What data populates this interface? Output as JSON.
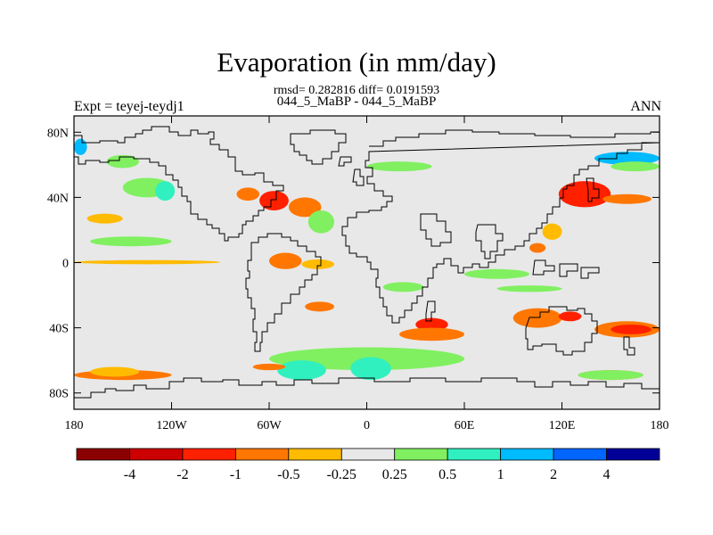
{
  "title": "Evaporation (in mm/day)",
  "stats_line": "rmsd= 0.282816 diff= 0.0191593",
  "subtitle": "044_5_MaBP - 044_5_MaBP",
  "left_label": "Expt = teyej-teydj1",
  "right_label": "ANN",
  "chart_data": {
    "type": "heatmap",
    "map_projection": "cylindrical-equidistant",
    "xlim": [
      -180,
      180
    ],
    "ylim": [
      -90,
      90
    ],
    "x_ticks": [
      {
        "value": -180,
        "label": "180"
      },
      {
        "value": -120,
        "label": "120W"
      },
      {
        "value": -60,
        "label": "60W"
      },
      {
        "value": 0,
        "label": "0"
      },
      {
        "value": 60,
        "label": "60E"
      },
      {
        "value": 120,
        "label": "120E"
      },
      {
        "value": 180,
        "label": "180"
      }
    ],
    "y_ticks": [
      {
        "value": 80,
        "label": "80N"
      },
      {
        "value": 40,
        "label": "40N"
      },
      {
        "value": 0,
        "label": "0"
      },
      {
        "value": -40,
        "label": "40S"
      },
      {
        "value": -80,
        "label": "80S"
      }
    ],
    "colorbar": {
      "levels": [
        "-4",
        "-2",
        "-1",
        "-0.5",
        "-0.25",
        "0.25",
        "0.5",
        "1",
        "2",
        "4"
      ],
      "colors": [
        "#8b0000",
        "#cc0000",
        "#ff2000",
        "#ff7700",
        "#ffbb00",
        "#e8e8e8",
        "#80f060",
        "#30f0c0",
        "#00bbff",
        "#0066ff",
        "#000099"
      ]
    },
    "background_color": "#e8e8e8",
    "anomaly_regions": [
      {
        "lon": [
          -180,
          -172
        ],
        "lat": [
          66,
          76
        ],
        "level": 8
      },
      {
        "lon": [
          -160,
          -140
        ],
        "lat": [
          58,
          66
        ],
        "level": 6
      },
      {
        "lon": [
          -150,
          -120
        ],
        "lat": [
          40,
          52
        ],
        "level": 6
      },
      {
        "lon": [
          -130,
          -118
        ],
        "lat": [
          38,
          50
        ],
        "level": 7
      },
      {
        "lon": [
          -172,
          -150
        ],
        "lat": [
          24,
          30
        ],
        "level": 4
      },
      {
        "lon": [
          -80,
          -66
        ],
        "lat": [
          38,
          46
        ],
        "level": 3
      },
      {
        "lon": [
          -66,
          -48
        ],
        "lat": [
          32,
          44
        ],
        "level": 2
      },
      {
        "lon": [
          -48,
          -28
        ],
        "lat": [
          28,
          40
        ],
        "level": 3
      },
      {
        "lon": [
          -36,
          -20
        ],
        "lat": [
          18,
          32
        ],
        "level": 6
      },
      {
        "lon": [
          -180,
          -90
        ],
        "lat": [
          -1,
          1.5
        ],
        "level": 4
      },
      {
        "lon": [
          -170,
          -120
        ],
        "lat": [
          10,
          16
        ],
        "level": 6
      },
      {
        "lon": [
          -60,
          -40
        ],
        "lat": [
          -4,
          6
        ],
        "level": 3
      },
      {
        "lon": [
          -40,
          -20
        ],
        "lat": [
          -4,
          2
        ],
        "level": 4
      },
      {
        "lon": [
          -38,
          -20
        ],
        "lat": [
          -30,
          -24
        ],
        "level": 3
      },
      {
        "lon": [
          10,
          35
        ],
        "lat": [
          -18,
          -12
        ],
        "level": 6
      },
      {
        "lon": [
          30,
          50
        ],
        "lat": [
          -42,
          -34
        ],
        "level": 2
      },
      {
        "lon": [
          20,
          60
        ],
        "lat": [
          -48,
          -40
        ],
        "level": 3
      },
      {
        "lon": [
          -60,
          60
        ],
        "lat": [
          -66,
          -52
        ],
        "level": 6
      },
      {
        "lon": [
          -55,
          -25
        ],
        "lat": [
          -72,
          -60
        ],
        "level": 7
      },
      {
        "lon": [
          -10,
          15
        ],
        "lat": [
          -72,
          -58
        ],
        "level": 7
      },
      {
        "lon": [
          -180,
          -120
        ],
        "lat": [
          -72,
          -66
        ],
        "level": 3
      },
      {
        "lon": [
          -170,
          -140
        ],
        "lat": [
          -70,
          -64
        ],
        "level": 4
      },
      {
        "lon": [
          -70,
          -50
        ],
        "lat": [
          -66,
          -62
        ],
        "level": 3
      },
      {
        "lon": [
          90,
          120
        ],
        "lat": [
          -40,
          -28
        ],
        "level": 3
      },
      {
        "lon": [
          118,
          132
        ],
        "lat": [
          -36,
          -30
        ],
        "level": 2
      },
      {
        "lon": [
          140,
          180
        ],
        "lat": [
          -46,
          -36
        ],
        "level": 3
      },
      {
        "lon": [
          150,
          175
        ],
        "lat": [
          -44,
          -38
        ],
        "level": 2
      },
      {
        "lon": [
          125,
          145
        ],
        "lat": [
          38,
          46
        ],
        "level": 1
      },
      {
        "lon": [
          118,
          150
        ],
        "lat": [
          34,
          50
        ],
        "level": 2
      },
      {
        "lon": [
          145,
          175
        ],
        "lat": [
          36,
          42
        ],
        "level": 3
      },
      {
        "lon": [
          108,
          120
        ],
        "lat": [
          14,
          24
        ],
        "level": 4
      },
      {
        "lon": [
          100,
          110
        ],
        "lat": [
          6,
          12
        ],
        "level": 3
      },
      {
        "lon": [
          140,
          180
        ],
        "lat": [
          60,
          68
        ],
        "level": 8
      },
      {
        "lon": [
          150,
          180
        ],
        "lat": [
          56,
          62
        ],
        "level": 6
      },
      {
        "lon": [
          60,
          100
        ],
        "lat": [
          -10,
          -4
        ],
        "level": 6
      },
      {
        "lon": [
          80,
          120
        ],
        "lat": [
          -18,
          -14
        ],
        "level": 6
      },
      {
        "lon": [
          0,
          40
        ],
        "lat": [
          56,
          62
        ],
        "level": 6
      },
      {
        "lon": [
          130,
          170
        ],
        "lat": [
          -72,
          -66
        ],
        "level": 3
      },
      {
        "lon": [
          130,
          170
        ],
        "lat": [
          -72,
          -66
        ],
        "level": 6
      }
    ]
  }
}
